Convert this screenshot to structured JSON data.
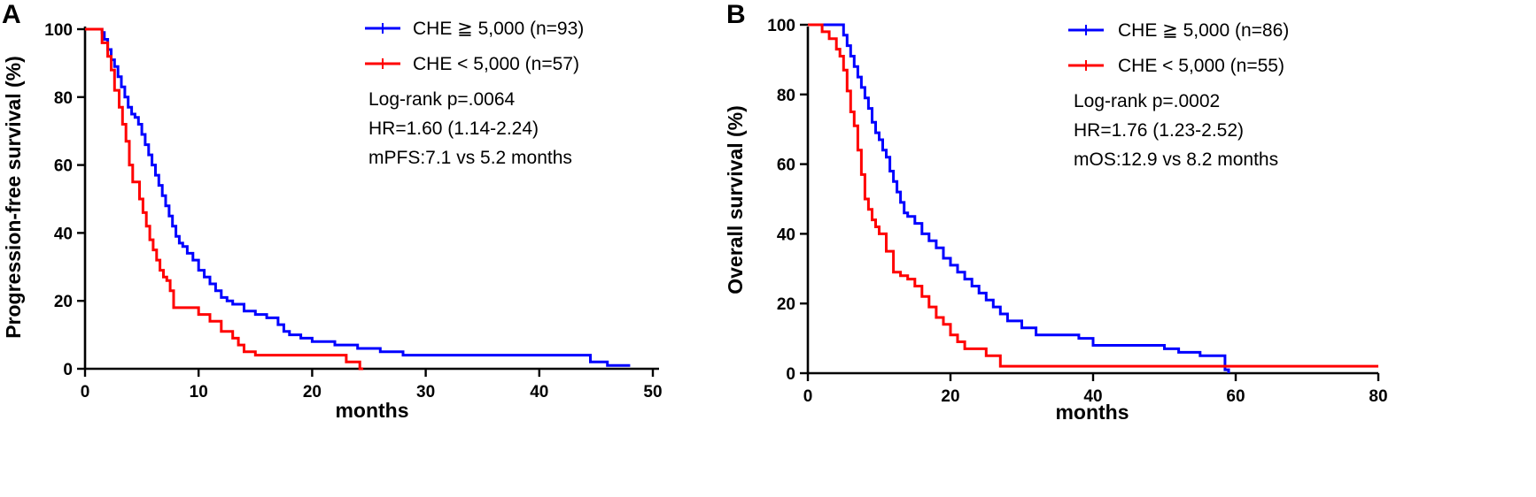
{
  "chart_data": [
    {
      "panel_label": "A",
      "type": "line",
      "subtype": "kaplan-meier",
      "ylabel": "Progression-free survival (%)",
      "xlabel": "months",
      "xlim": [
        0,
        50
      ],
      "ylim": [
        0,
        100
      ],
      "x_ticks": [
        "0",
        "10",
        "20",
        "30",
        "40",
        "50"
      ],
      "y_ticks": [
        "0",
        "20",
        "40",
        "60",
        "80",
        "100"
      ],
      "legend_position": "top-right",
      "annotations": [
        "Log-rank p=.0064",
        "HR=1.60 (1.14-2.24)",
        "mPFS:7.1  vs 5.2 months"
      ],
      "series": [
        {
          "name": "CHE ≧ 5,000 (n=93)",
          "color": "#0000FF",
          "x": [
            0,
            1.5,
            1.7,
            2.0,
            2.3,
            2.6,
            2.9,
            3.2,
            3.5,
            3.8,
            4.1,
            4.4,
            4.7,
            5.0,
            5.3,
            5.6,
            5.9,
            6.2,
            6.5,
            6.8,
            7.1,
            7.4,
            7.7,
            8.0,
            8.3,
            8.6,
            9.0,
            9.5,
            10.0,
            10.5,
            11.0,
            11.5,
            12.0,
            12.5,
            13.0,
            14.0,
            15.0,
            16.0,
            17.0,
            17.5,
            18.0,
            19.0,
            20.0,
            22.0,
            24.0,
            26.0,
            28.0,
            30.0,
            35.0,
            40.0,
            43.5,
            44.5,
            45.0,
            46.0,
            48.0
          ],
          "y": [
            100,
            99,
            97,
            94,
            91,
            89,
            86,
            83,
            80,
            77,
            75,
            74,
            72,
            69,
            66,
            63,
            60,
            57,
            54,
            51,
            48,
            45,
            42,
            39,
            37,
            36,
            34,
            32,
            29,
            27,
            25,
            23,
            21,
            20,
            19,
            17,
            16,
            15,
            13,
            11,
            10,
            9,
            8,
            7,
            6,
            5,
            4,
            4,
            4,
            4,
            4,
            2,
            2,
            1,
            1
          ]
        },
        {
          "name": "CHE < 5,000  (n=57)",
          "color": "#FF0000",
          "x": [
            0,
            1.5,
            2.0,
            2.3,
            2.6,
            3.0,
            3.3,
            3.6,
            3.9,
            4.2,
            4.5,
            4.8,
            5.1,
            5.4,
            5.7,
            6.0,
            6.3,
            6.6,
            6.9,
            7.2,
            7.5,
            7.8,
            8.1,
            8.5,
            9.0,
            10.0,
            11.0,
            12.0,
            13.0,
            13.5,
            14.0,
            15.0,
            17.0,
            20.0,
            23.0,
            24.2,
            24.5
          ],
          "y": [
            100,
            96,
            92,
            88,
            82,
            77,
            72,
            67,
            60,
            55,
            55,
            50,
            46,
            42,
            38,
            35,
            32,
            29,
            27,
            26,
            23,
            18,
            18,
            18,
            18,
            16,
            14,
            11,
            9,
            7,
            5,
            4,
            4,
            4,
            2,
            0,
            0
          ]
        }
      ]
    },
    {
      "panel_label": "B",
      "type": "line",
      "subtype": "kaplan-meier",
      "ylabel": "Overall survival (%)",
      "xlabel": "months",
      "xlim": [
        0,
        80
      ],
      "ylim": [
        0,
        100
      ],
      "x_ticks": [
        "0",
        "20",
        "40",
        "60",
        "80"
      ],
      "y_ticks": [
        "0",
        "20",
        "40",
        "60",
        "80",
        "100"
      ],
      "legend_position": "top-right",
      "annotations": [
        "Log-rank p=.0002",
        "HR=1.76 (1.23-2.52)",
        "mOS:12.9  vs 8.2 months"
      ],
      "series": [
        {
          "name": "CHE ≧ 5,000 (n=86)",
          "color": "#0000FF",
          "x": [
            0,
            5.0,
            5.5,
            6.0,
            6.5,
            7.0,
            7.5,
            8.0,
            8.5,
            9.0,
            9.5,
            10.0,
            10.5,
            11.0,
            11.5,
            12.0,
            12.5,
            13.0,
            13.5,
            14.0,
            15.0,
            16.0,
            17.0,
            18.0,
            19.0,
            20.0,
            21.0,
            22.0,
            23.0,
            24.0,
            25.0,
            26.0,
            27.0,
            28.0,
            30.0,
            32.0,
            35.0,
            38.0,
            40.0,
            45.0,
            50.0,
            52.0,
            55.0,
            57.5,
            58.5,
            59.0
          ],
          "y": [
            100,
            97,
            94,
            91,
            88,
            85,
            82,
            79,
            76,
            72,
            69,
            67,
            64,
            62,
            58,
            55,
            52,
            49,
            46,
            45,
            43,
            40,
            38,
            36,
            33,
            31,
            29,
            27,
            25,
            23,
            21,
            19,
            17,
            15,
            13,
            11,
            11,
            10,
            8,
            8,
            7,
            6,
            5,
            5,
            1,
            0
          ]
        },
        {
          "name": "CHE < 5,000 (n=55)",
          "color": "#FF0000",
          "x": [
            0,
            2.0,
            3.0,
            4.0,
            4.5,
            5.0,
            5.5,
            6.0,
            6.5,
            7.0,
            7.5,
            8.0,
            8.5,
            9.0,
            9.5,
            10.0,
            11.0,
            12.0,
            13.0,
            14.0,
            15.0,
            16.0,
            17.0,
            18.0,
            19.0,
            20.0,
            21.0,
            22.0,
            25.0,
            27.0,
            30.0,
            40.0,
            60.0,
            80.0
          ],
          "y": [
            100,
            98,
            96,
            93,
            91,
            87,
            81,
            75,
            71,
            64,
            57,
            50,
            47,
            44,
            42,
            40,
            35,
            29,
            28,
            27,
            25,
            22,
            19,
            16,
            14,
            11,
            9,
            7,
            5,
            2,
            2,
            2,
            2,
            2
          ]
        }
      ]
    }
  ]
}
